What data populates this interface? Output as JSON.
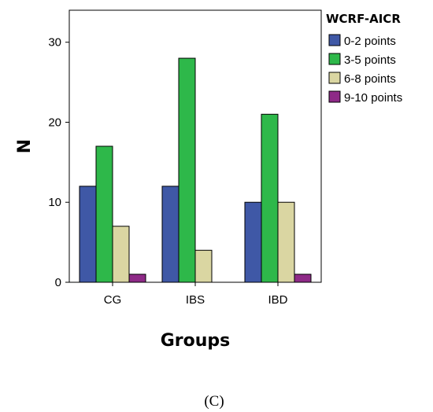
{
  "chart_data": {
    "type": "bar",
    "title": "",
    "xlabel": "Groups",
    "ylabel": "N",
    "categories": [
      "CG",
      "IBS",
      "IBD"
    ],
    "ylim": [
      0,
      34
    ],
    "yticks": [
      0,
      10,
      20,
      30
    ],
    "grid": false,
    "legend": {
      "title": "WCRF-AICR",
      "placement": "right"
    },
    "series": [
      {
        "name": "0-2 points",
        "color": "#3f58a6",
        "values": [
          12,
          12,
          10
        ]
      },
      {
        "name": "3-5 points",
        "color": "#2eb84a",
        "values": [
          17,
          28,
          21
        ]
      },
      {
        "name": "6-8 points",
        "color": "#dad6a2",
        "values": [
          7,
          4,
          10
        ]
      },
      {
        "name": "9-10 points",
        "color": "#8e2a87",
        "values": [
          1,
          0,
          1
        ]
      }
    ]
  },
  "caption": "(C)"
}
